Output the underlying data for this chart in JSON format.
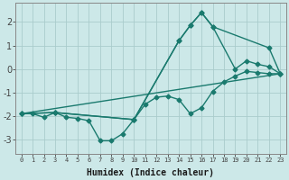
{
  "background_color": "#cce8e8",
  "grid_color": "#aacccc",
  "line_color": "#1a7a6e",
  "marker": "D",
  "marker_size": 2.5,
  "linewidth": 1.0,
  "xlabel": "Humidex (Indice chaleur)",
  "xlim": [
    -0.5,
    23.5
  ],
  "ylim": [
    -3.6,
    2.8
  ],
  "yticks": [
    -3,
    -2,
    -1,
    0,
    1,
    2
  ],
  "xticks": [
    0,
    1,
    2,
    3,
    4,
    5,
    6,
    7,
    8,
    9,
    10,
    11,
    12,
    13,
    14,
    15,
    16,
    17,
    18,
    19,
    20,
    21,
    22,
    23
  ],
  "line1_x": [
    0,
    1,
    2,
    3,
    4,
    5,
    6,
    7,
    8,
    9,
    10,
    11,
    12,
    13,
    14,
    15,
    16,
    17,
    18,
    19,
    20,
    21,
    22,
    23
  ],
  "line1_y": [
    -1.9,
    -1.9,
    -2.05,
    -1.85,
    -2.05,
    -2.1,
    -2.2,
    -3.05,
    -3.05,
    -2.75,
    -2.15,
    -1.5,
    -1.2,
    -1.15,
    -1.3,
    -1.9,
    -1.65,
    -0.95,
    -0.55,
    -0.3,
    -0.1,
    -0.15,
    -0.2,
    -0.2
  ],
  "line2_x": [
    0,
    3,
    10,
    14,
    15,
    16,
    17,
    22,
    23
  ],
  "line2_y": [
    -1.9,
    -1.85,
    -2.15,
    1.2,
    1.85,
    2.4,
    1.8,
    0.9,
    -0.2
  ],
  "line3_x": [
    0,
    3,
    10,
    14,
    15,
    16,
    17,
    19,
    20,
    21,
    22,
    23
  ],
  "line3_y": [
    -1.9,
    -1.85,
    -2.15,
    1.2,
    1.85,
    2.4,
    1.8,
    0.0,
    0.35,
    0.2,
    0.1,
    -0.2
  ],
  "line4_x": [
    0,
    23
  ],
  "line4_y": [
    -1.9,
    -0.2
  ]
}
